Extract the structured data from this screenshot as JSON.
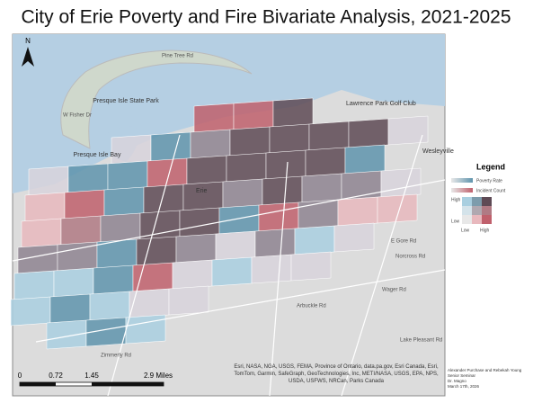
{
  "title": "City of Erie Poverty and Fire Bivariate Analysis, 2021-2025",
  "north_arrow": "N",
  "map_labels": {
    "park": "Presque Isle State Park",
    "bay": "Presque Isle Bay",
    "city": "Erie",
    "town": "Wesleyville",
    "golf": "Lawrence Park Golf Club",
    "road_1": "Pine Tree Rd",
    "road_2": "W Fisher Dr",
    "road_3": "Zimmerly Rd",
    "road_4": "Arbuckle Rd",
    "road_5": "Wager Rd",
    "road_6": "E Gore Rd",
    "road_7": "Norcross Rd",
    "road_8": "Lake Pleasant Rd"
  },
  "legend": {
    "title": "Legend",
    "items": [
      "Poverty Rate",
      "Incident Count"
    ],
    "y_high": "High",
    "y_low": "Low",
    "x_low": "Low",
    "x_high": "High"
  },
  "scale_bar": {
    "labels": [
      "0",
      "0.72",
      "1.45",
      "2.9 Miles"
    ]
  },
  "attribution": "Esri, NASA, NGA, USGS, FEMA, Province of Ontario, data.pa.gov, Esri Canada, Esri, TomTom, Garmin, SafeGraph, GeoTechnologies, Inc, METI/NASA, USGS, EPA, NPS, USDA, USFWS, NRCan, Parks Canada",
  "credits": [
    "Alexander Purchase and Rebekah Young",
    "Senior Seminar",
    "Dr. Magno",
    "March 17th, 2026"
  ]
}
